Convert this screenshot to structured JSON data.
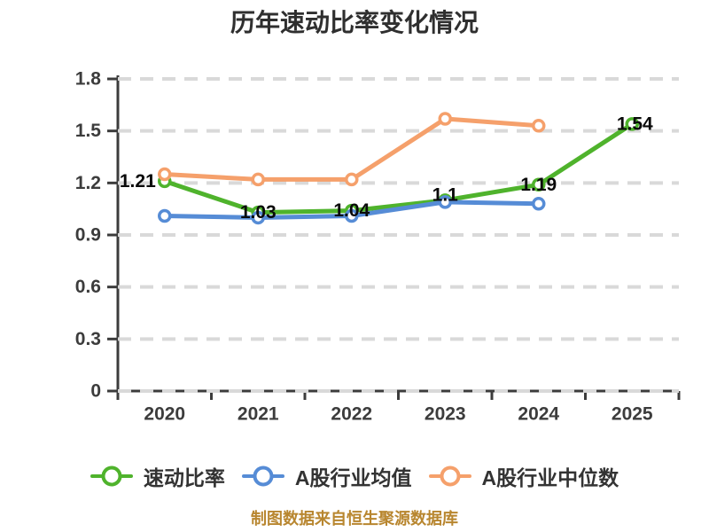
{
  "chart": {
    "title": "历年速动比率变化情况",
    "source_note": "制图数据来自恒生聚源数据库"
  },
  "chart_data": {
    "type": "line",
    "title": "历年速动比率变化情况",
    "categories": [
      "2020",
      "2021",
      "2022",
      "2023",
      "2024",
      "2025"
    ],
    "series": [
      {
        "name": "速动比率",
        "color": "#4fb32c",
        "values": [
          1.21,
          1.03,
          1.04,
          1.1,
          1.19,
          1.54
        ],
        "point_labels": [
          "1.21",
          "1.03",
          "1.04",
          "1.1",
          "1.19",
          "1.54"
        ]
      },
      {
        "name": "A股行业均值",
        "color": "#568cd6",
        "values": [
          1.01,
          1.0,
          1.01,
          1.09,
          1.08,
          null
        ]
      },
      {
        "name": "A股行业中位数",
        "color": "#f5a06b",
        "values": [
          1.25,
          1.22,
          1.22,
          1.57,
          1.53,
          null
        ]
      }
    ],
    "xlabel": "",
    "ylabel": "",
    "ylim": [
      0,
      1.8
    ],
    "yticks": [
      0,
      0.3,
      0.6,
      0.9,
      1.2,
      1.5,
      1.8
    ],
    "grid": "horizontal-dashed",
    "legend_position": "bottom",
    "marker": "circle-white-fill"
  },
  "legend": [
    {
      "label": "速动比率",
      "color": "#4fb32c"
    },
    {
      "label": "A股行业均值",
      "color": "#568cd6"
    },
    {
      "label": "A股行业中位数",
      "color": "#f5a06b"
    }
  ],
  "colors": {
    "background": "#ffffff",
    "axis": "#3c3c3c",
    "grid": "#d9d9d9",
    "tick_label": "#3c3c3c",
    "data_label": "#0a0a0a",
    "title": "#2f2f2f",
    "source_note": "#b8862f"
  }
}
